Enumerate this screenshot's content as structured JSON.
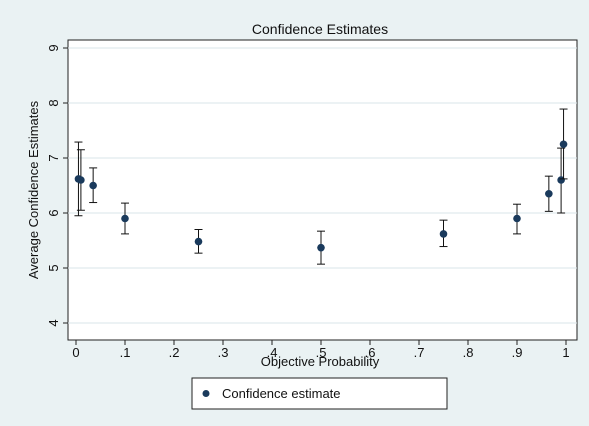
{
  "chart_data": {
    "type": "scatter",
    "title": "Confidence Estimates",
    "xlabel": "Objective Probability",
    "ylabel": "Average Confidence Estimates",
    "xlim": [
      0,
      1
    ],
    "ylim": [
      4,
      9
    ],
    "x_ticks": [
      0,
      0.1,
      0.2,
      0.3,
      0.4,
      0.5,
      0.6,
      0.7,
      0.8,
      0.9,
      1
    ],
    "x_tick_labels": [
      "0",
      ".1",
      ".2",
      ".3",
      ".4",
      ".5",
      ".6",
      ".7",
      ".8",
      ".9",
      "1"
    ],
    "y_ticks": [
      4,
      5,
      6,
      7,
      8,
      9
    ],
    "y_tick_labels": [
      "4",
      "5",
      "6",
      "7",
      "8",
      "9"
    ],
    "grid": "horizontal",
    "legend_position": "bottom",
    "series": [
      {
        "name": "Confidence estimate",
        "color": "#1a3a5c",
        "points": [
          {
            "x": 0.005,
            "y": 6.62,
            "low": 5.95,
            "high": 7.29
          },
          {
            "x": 0.01,
            "y": 6.6,
            "low": 6.05,
            "high": 7.15
          },
          {
            "x": 0.035,
            "y": 6.5,
            "low": 6.19,
            "high": 6.82
          },
          {
            "x": 0.1,
            "y": 5.9,
            "low": 5.62,
            "high": 6.18
          },
          {
            "x": 0.25,
            "y": 5.48,
            "low": 5.27,
            "high": 5.7
          },
          {
            "x": 0.5,
            "y": 5.37,
            "low": 5.07,
            "high": 5.67
          },
          {
            "x": 0.75,
            "y": 5.62,
            "low": 5.39,
            "high": 5.87
          },
          {
            "x": 0.9,
            "y": 5.9,
            "low": 5.62,
            "high": 6.16
          },
          {
            "x": 0.965,
            "y": 6.35,
            "low": 6.03,
            "high": 6.67
          },
          {
            "x": 0.99,
            "y": 6.6,
            "low": 6.0,
            "high": 7.18
          },
          {
            "x": 0.995,
            "y": 7.25,
            "low": 6.62,
            "high": 7.89
          }
        ]
      }
    ]
  }
}
